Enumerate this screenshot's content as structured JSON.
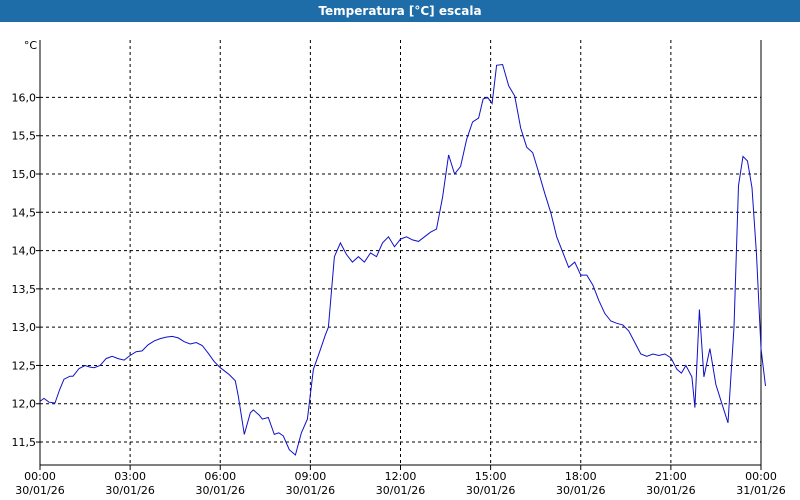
{
  "window": {
    "title": "Temperatura [°C] escala"
  },
  "colors": {
    "titlebar": "#1e6ca8",
    "line": "#1010c8",
    "grid": "#000000",
    "background": "#ffffff"
  },
  "chart_data": {
    "type": "line",
    "title": "Temperatura [°C] escala",
    "ylabel": "°C",
    "xlabel": "",
    "grid": true,
    "ylim": [
      11.2,
      16.75
    ],
    "xlim": [
      "30/01/26 00:00",
      "31/01/26 00:00"
    ],
    "yticks": [
      "11,5",
      "12,0",
      "12,5",
      "13,0",
      "13,5",
      "14,0",
      "14,5",
      "15,0",
      "15,5",
      "16,0"
    ],
    "ytick_values": [
      11.5,
      12.0,
      12.5,
      13.0,
      13.5,
      14.0,
      14.5,
      15.0,
      15.5,
      16.0
    ],
    "xticks": [
      {
        "time": "00:00",
        "date": "30/01/26"
      },
      {
        "time": "03:00",
        "date": "30/01/26"
      },
      {
        "time": "06:00",
        "date": "30/01/26"
      },
      {
        "time": "09:00",
        "date": "30/01/26"
      },
      {
        "time": "12:00",
        "date": "30/01/26"
      },
      {
        "time": "15:00",
        "date": "30/01/26"
      },
      {
        "time": "18:00",
        "date": "30/01/26"
      },
      {
        "time": "21:00",
        "date": "30/01/26"
      },
      {
        "time": "00:00",
        "date": "31/01/26"
      }
    ],
    "xtick_hours": [
      0,
      3,
      6,
      9,
      12,
      15,
      18,
      21,
      24
    ],
    "series": [
      {
        "x_hours": [
          0.0,
          0.13,
          0.3,
          0.5,
          0.65,
          0.8,
          1.0,
          1.1,
          1.3,
          1.5,
          1.65,
          1.8,
          2.0,
          2.2,
          2.4,
          2.6,
          2.8,
          3.0,
          3.2,
          3.4,
          3.6,
          3.8,
          4.0,
          4.2,
          4.4,
          4.6,
          4.8,
          5.0,
          5.2,
          5.4,
          5.6,
          5.8,
          6.0,
          6.2,
          6.3,
          6.5,
          6.6,
          6.8,
          7.0,
          7.1,
          7.3,
          7.4,
          7.6,
          7.8,
          7.95,
          8.1,
          8.3,
          8.5,
          8.7,
          8.9,
          9.1,
          9.3,
          9.5,
          9.6,
          9.8,
          10.0,
          10.2,
          10.4,
          10.6,
          10.8,
          11.0,
          11.2,
          11.4,
          11.6,
          11.8,
          12.0,
          12.2,
          12.4,
          12.6,
          12.8,
          13.0,
          13.2,
          13.4,
          13.6,
          13.8,
          14.0,
          14.2,
          14.4,
          14.6,
          14.75,
          14.9,
          15.05,
          15.2,
          15.4,
          15.6,
          15.8,
          16.0,
          16.2,
          16.4,
          16.6,
          16.8,
          17.0,
          17.2,
          17.4,
          17.6,
          17.8,
          18.0,
          18.2,
          18.4,
          18.6,
          18.8,
          19.0,
          19.2,
          19.4,
          19.6,
          19.8,
          20.0,
          20.2,
          20.4,
          20.6,
          20.8,
          21.0,
          21.2,
          21.35,
          21.5,
          21.7,
          21.8,
          21.95,
          22.1,
          22.3,
          22.5,
          22.7,
          22.9,
          23.1,
          23.25,
          23.4,
          23.55,
          23.7,
          23.85,
          24.0,
          24.15
        ],
        "values": [
          12.03,
          12.07,
          12.02,
          12.01,
          12.18,
          12.32,
          12.36,
          12.36,
          12.46,
          12.5,
          12.48,
          12.47,
          12.5,
          12.59,
          12.62,
          12.59,
          12.57,
          12.63,
          12.68,
          12.69,
          12.77,
          12.82,
          12.85,
          12.87,
          12.88,
          12.86,
          12.81,
          12.78,
          12.8,
          12.76,
          12.66,
          12.55,
          12.47,
          12.41,
          12.38,
          12.3,
          12.1,
          11.6,
          11.88,
          11.92,
          11.85,
          11.8,
          11.82,
          11.6,
          11.62,
          11.58,
          11.4,
          11.33,
          11.62,
          11.8,
          12.45,
          12.67,
          12.9,
          13.0,
          13.92,
          14.1,
          13.95,
          13.85,
          13.92,
          13.85,
          13.97,
          13.92,
          14.1,
          14.18,
          14.05,
          14.15,
          14.18,
          14.14,
          14.12,
          14.18,
          14.24,
          14.28,
          14.7,
          15.25,
          15.0,
          15.1,
          15.45,
          15.68,
          15.73,
          15.98,
          16.0,
          15.92,
          16.42,
          16.43,
          16.15,
          16.02,
          15.6,
          15.35,
          15.28,
          15.02,
          14.75,
          14.5,
          14.18,
          13.98,
          13.78,
          13.85,
          13.68,
          13.68,
          13.55,
          13.35,
          13.18,
          13.08,
          13.05,
          13.03,
          12.95,
          12.8,
          12.65,
          12.62,
          12.65,
          12.63,
          12.65,
          12.6,
          12.45,
          12.4,
          12.5,
          12.35,
          11.95,
          13.23,
          12.35,
          12.72,
          12.25,
          12.0,
          11.75,
          13.0,
          14.85,
          15.23,
          15.17,
          14.82,
          13.95,
          12.72,
          12.23
        ]
      }
    ]
  }
}
